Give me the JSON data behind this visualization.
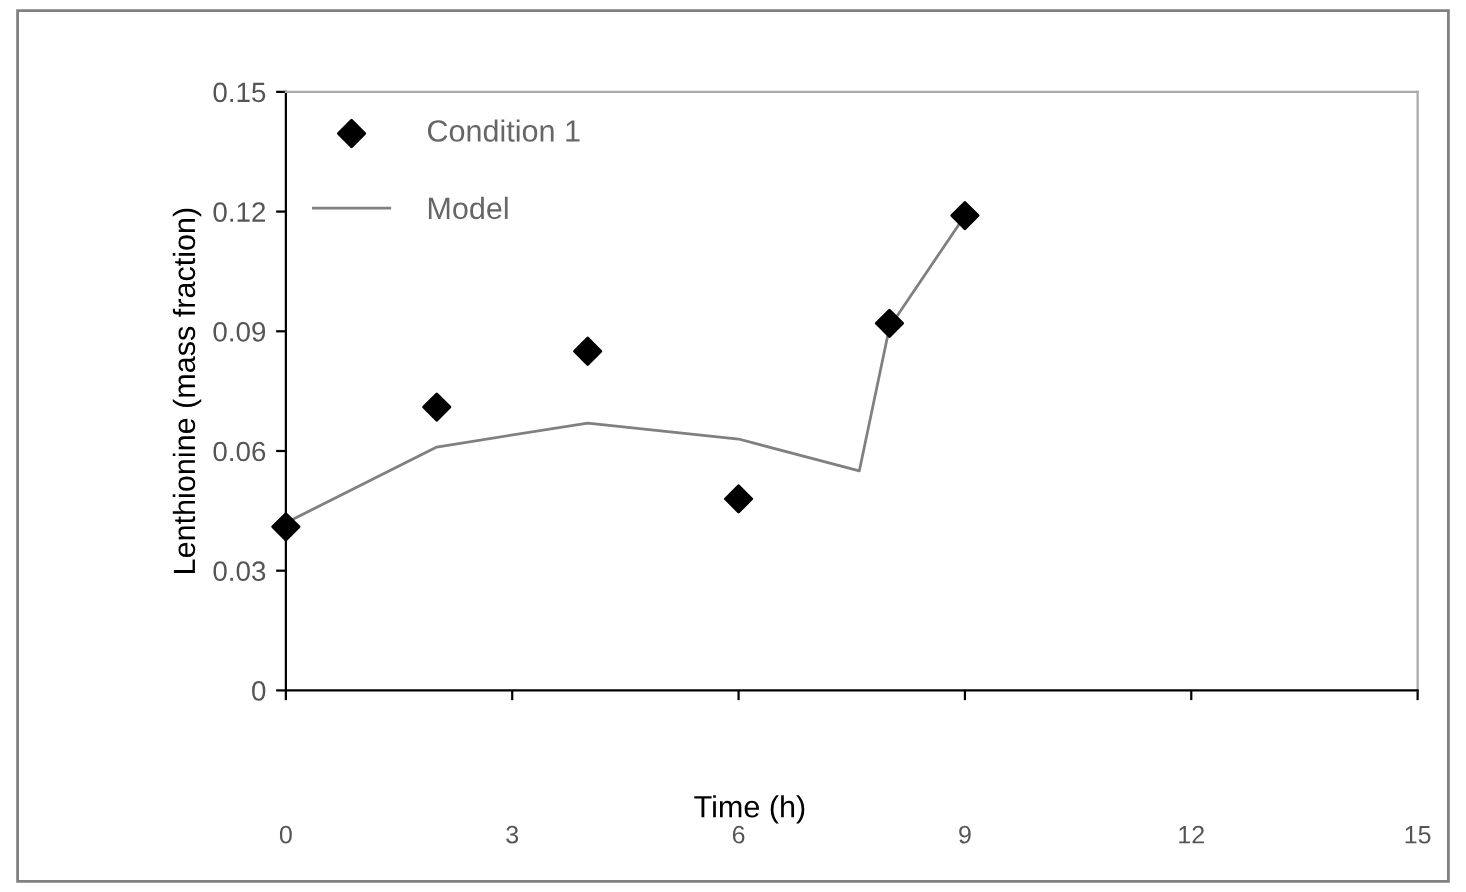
{
  "chart_data": {
    "type": "scatter",
    "xlabel": "Time (h)",
    "ylabel": "Lenthionine (mass fraction)",
    "xlim": [
      0,
      15
    ],
    "xticks": [
      0,
      3,
      6,
      9,
      12,
      15
    ],
    "ylim": [
      0,
      0.15
    ],
    "yticks": [
      0,
      0.03,
      0.06,
      0.09,
      0.12,
      0.15
    ],
    "grid": false,
    "legend": "top left",
    "series": [
      {
        "name": "Condition 1",
        "marker": "diamond",
        "color": "#000000",
        "x": [
          0,
          2,
          4,
          6,
          8,
          9
        ],
        "values": [
          0.041,
          0.071,
          0.085,
          0.048,
          0.092,
          0.119
        ]
      },
      {
        "name": "Model",
        "type": "line",
        "marker": "none",
        "color": "#808080",
        "x": [
          0,
          2,
          4,
          6,
          7.6,
          8,
          9
        ],
        "values": [
          0.042,
          0.061,
          0.067,
          0.063,
          0.055,
          0.091,
          0.119
        ]
      }
    ]
  }
}
